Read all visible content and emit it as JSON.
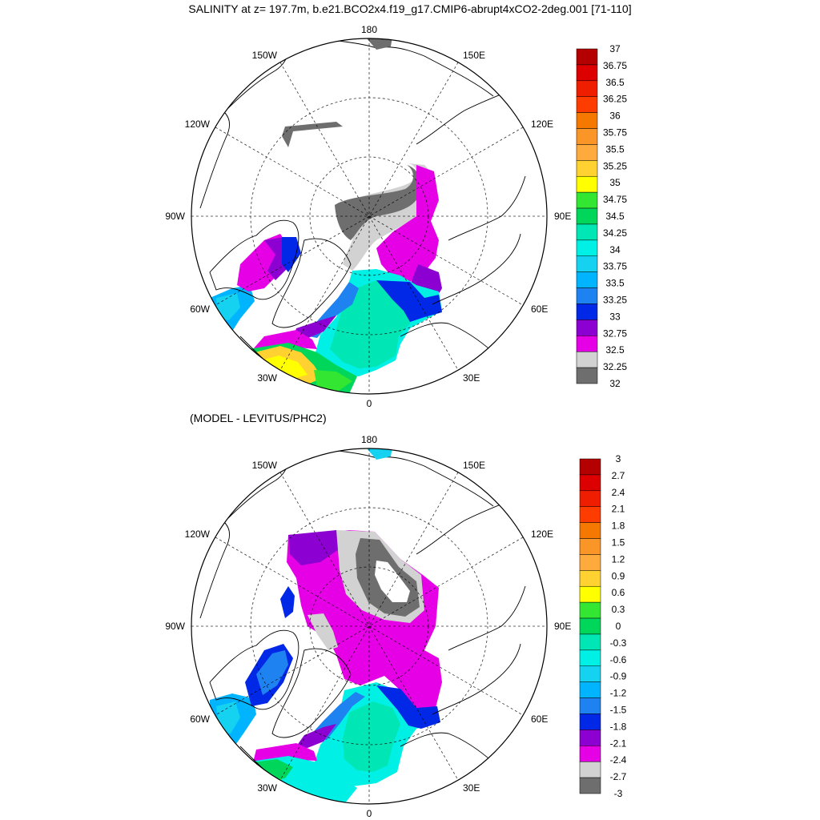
{
  "title": "SALINITY at z= 197.7m, b.e21.BCO2x4.f19_g17.CMIP6-abrupt4xCO2-2deg.001 [71-110]",
  "subtitle": "(MODEL - LEVITUS/PHC2)",
  "longitude_labels": [
    "180",
    "150E",
    "120E",
    "90E",
    "60E",
    "30E",
    "0",
    "30W",
    "60W",
    "90W",
    "120W",
    "150W"
  ],
  "colorbars": {
    "salinity": {
      "labels": [
        "37",
        "36.75",
        "36.5",
        "36.25",
        "36",
        "35.75",
        "35.5",
        "35.25",
        "35",
        "34.75",
        "34.5",
        "34.25",
        "34",
        "33.75",
        "33.5",
        "33.25",
        "33",
        "32.75",
        "32.5",
        "32.25",
        "32"
      ],
      "colors": [
        "#b40000",
        "#dc0000",
        "#f01e00",
        "#ff3c00",
        "#f57800",
        "#fa9628",
        "#ffaa3c",
        "#ffd232",
        "#ffff00",
        "#32e632",
        "#00d75a",
        "#00e6b4",
        "#00f0e6",
        "#14d2f0",
        "#00b4ff",
        "#1e82f0",
        "#0028e6",
        "#8c00d2",
        "#e600e6",
        "#d2d2d2",
        "#6e6e6e"
      ]
    },
    "difference": {
      "labels": [
        "3",
        "2.7",
        "2.4",
        "2.1",
        "1.8",
        "1.5",
        "1.2",
        "0.9",
        "0.6",
        "0.3",
        "0",
        "-0.3",
        "-0.6",
        "-0.9",
        "-1.2",
        "-1.5",
        "-1.8",
        "-2.1",
        "-2.4",
        "-2.7",
        "-3"
      ],
      "colors": [
        "#b40000",
        "#dc0000",
        "#f01e00",
        "#ff3c00",
        "#f57800",
        "#fa9628",
        "#ffaa3c",
        "#ffd232",
        "#ffff00",
        "#32e632",
        "#00d75a",
        "#00e6b4",
        "#00f0e6",
        "#14d2f0",
        "#00b4ff",
        "#1e82f0",
        "#0028e6",
        "#8c00d2",
        "#e600e6",
        "#d2d2d2",
        "#6e6e6e"
      ]
    }
  }
}
